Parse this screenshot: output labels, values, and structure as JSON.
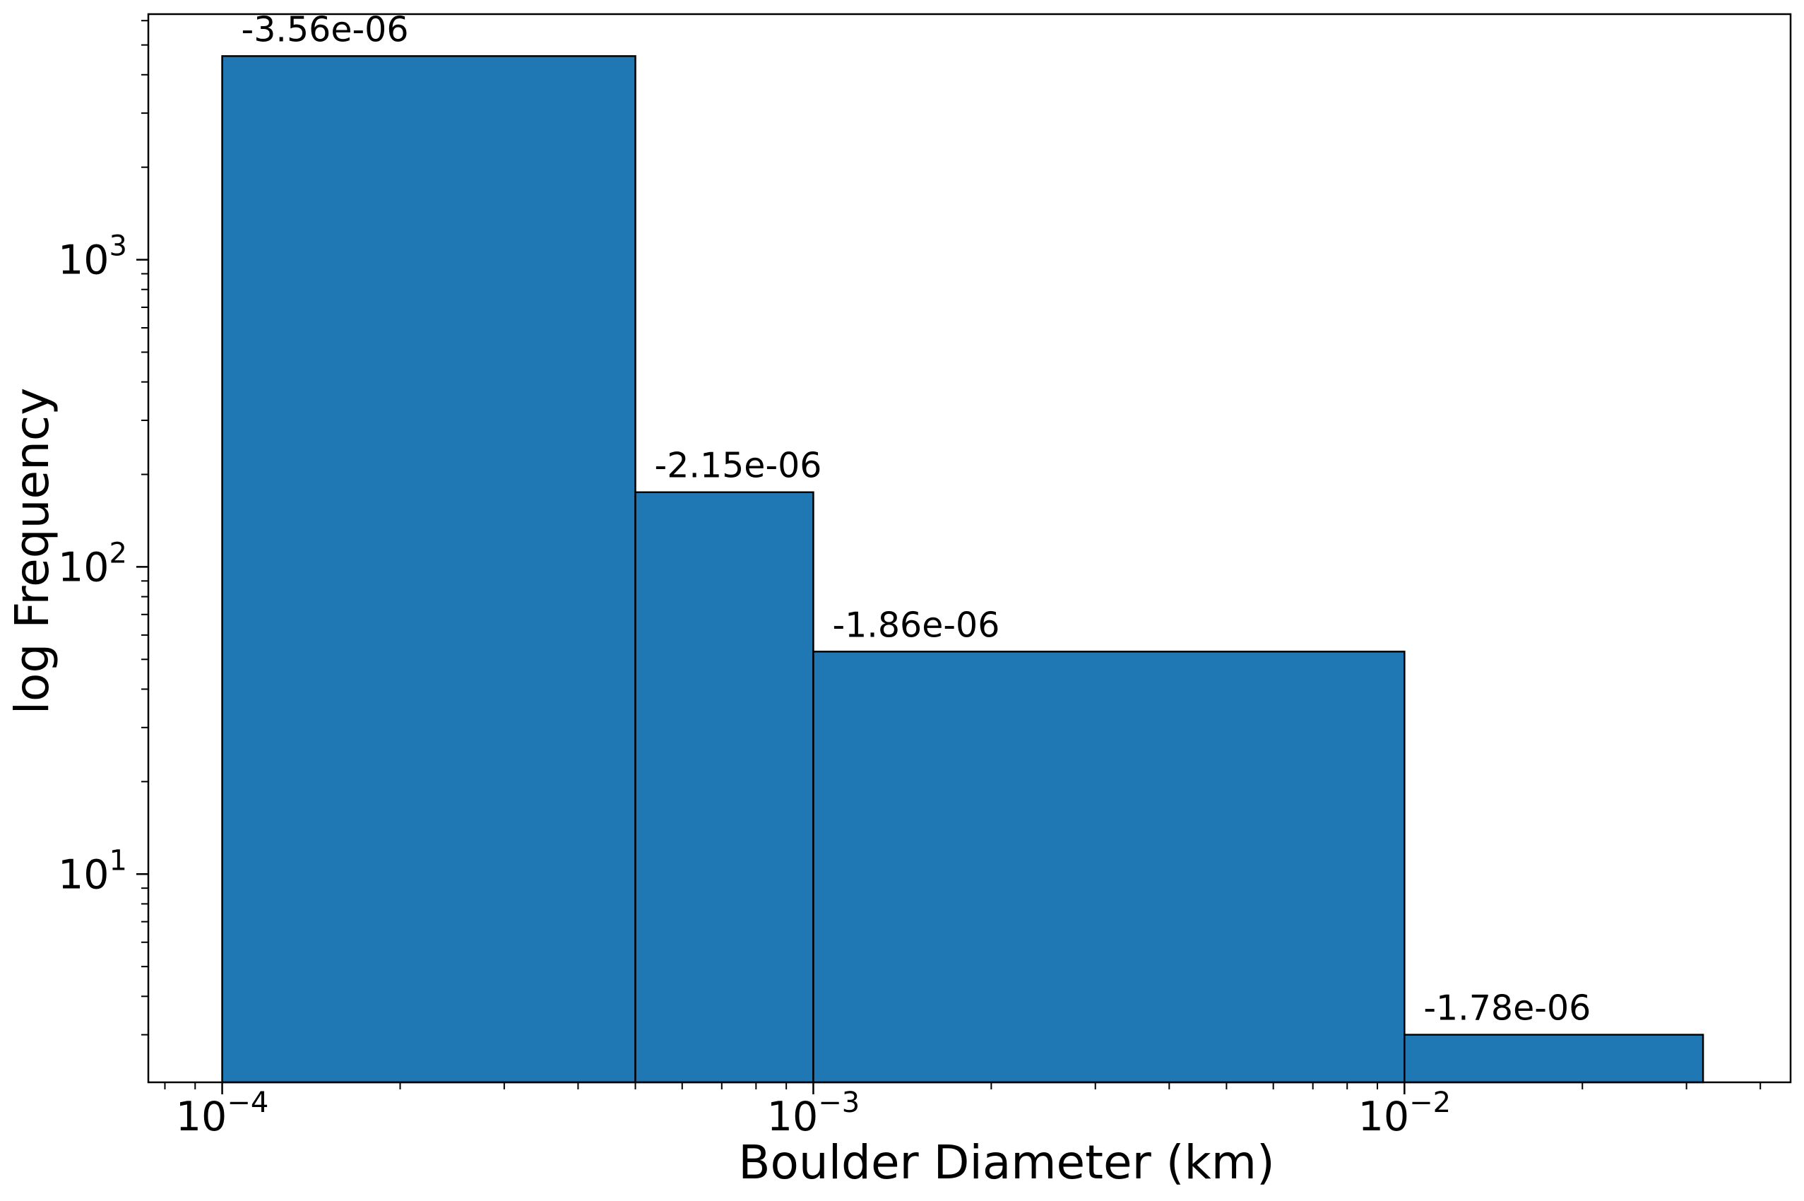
{
  "chart_data": {
    "type": "bar",
    "title": "",
    "xlabel": "Boulder Diameter (km)",
    "ylabel": "log Frequency",
    "xscale": "log",
    "yscale": "log",
    "xlim": [
      7.5e-05,
      0.045
    ],
    "ylim": [
      2.1,
      6300
    ],
    "grid": false,
    "bar_color": "#1f77b4",
    "edge_color": "#000000",
    "x_ticks": [
      {
        "value": 0.0001,
        "base": "10",
        "exp": "−4"
      },
      {
        "value": 0.001,
        "base": "10",
        "exp": "−3"
      },
      {
        "value": 0.01,
        "base": "10",
        "exp": "−2"
      }
    ],
    "y_ticks": [
      {
        "value": 10,
        "base": "10",
        "exp": "1"
      },
      {
        "value": 100,
        "base": "10",
        "exp": "2"
      },
      {
        "value": 1000,
        "base": "10",
        "exp": "3"
      }
    ],
    "bins": [
      {
        "x0": 0.0001,
        "x1": 0.0005,
        "value": 4600,
        "label": "-3.56e-06"
      },
      {
        "x0": 0.0005,
        "x1": 0.001,
        "value": 175,
        "label": "-2.15e-06"
      },
      {
        "x0": 0.001,
        "x1": 0.01,
        "value": 53,
        "label": "-1.86e-06"
      },
      {
        "x0": 0.01,
        "x1": 0.032,
        "value": 3,
        "label": "-1.78e-06"
      }
    ]
  }
}
